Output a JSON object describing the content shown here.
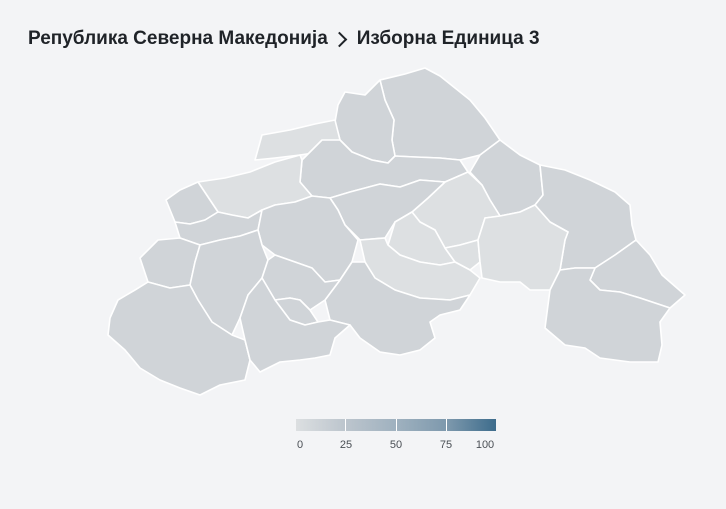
{
  "breadcrumb": {
    "country": "Република Северна Македонија",
    "unit": "Изборна Единица 3"
  },
  "legend": {
    "ticks": [
      "0",
      "25",
      "50",
      "75",
      "100"
    ],
    "colors": [
      "#dcdfe1",
      "#bcc5cd",
      "#9fb1bf",
      "#7e99ad",
      "#3d6c8c"
    ]
  },
  "colors": {
    "background": "#f3f4f6",
    "region_fill": "#d0d4d8",
    "region_fill_light": "#dde0e2",
    "region_border": "#ffffff"
  }
}
